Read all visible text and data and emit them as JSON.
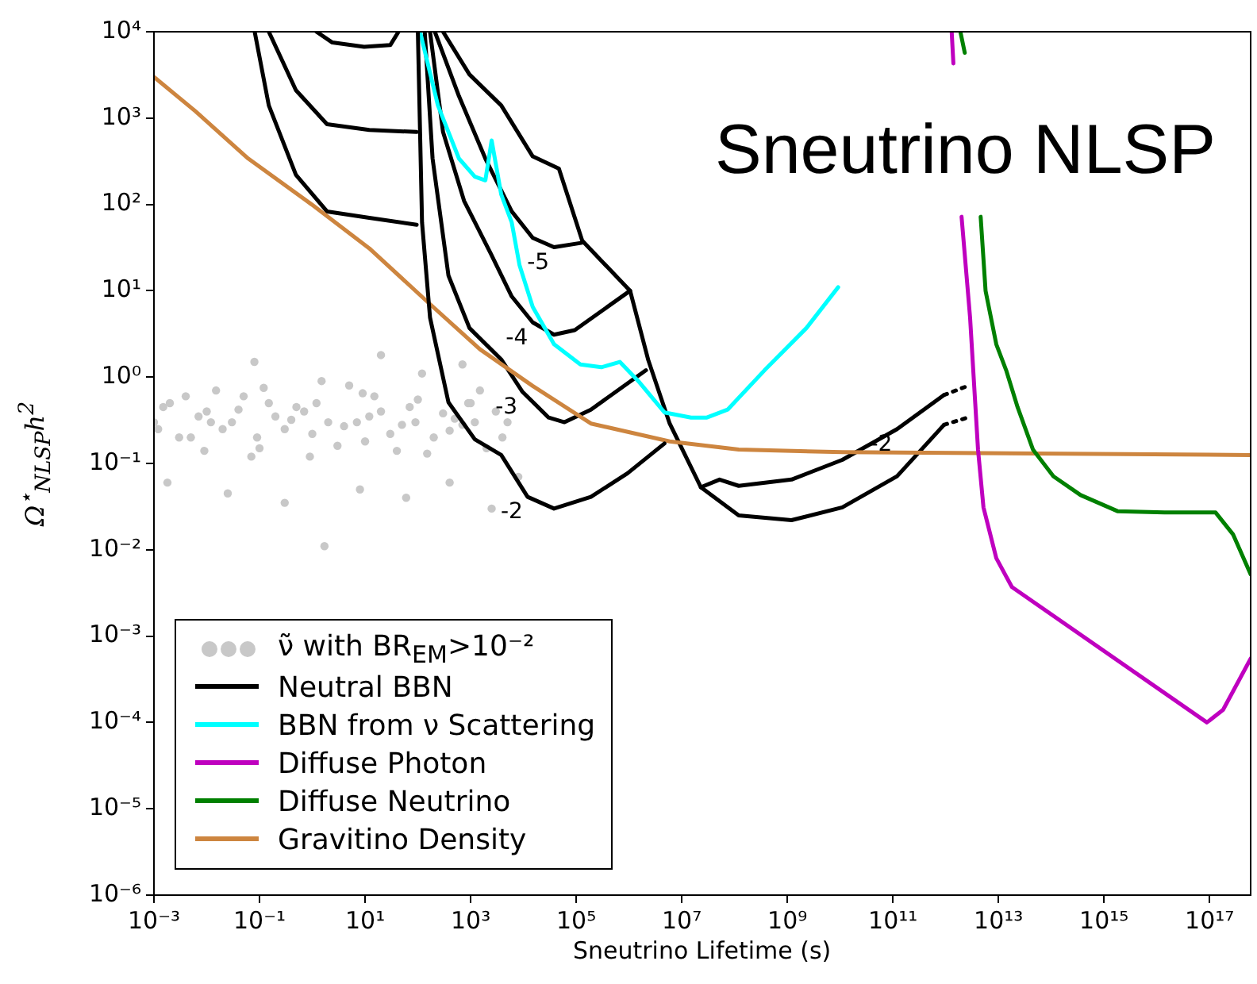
{
  "chart_data": {
    "type": "line",
    "title": "Sneutrino NLSP",
    "xlabel": "Sneutrino Lifetime (s)",
    "ylabel": "Ω$^{⋆}$$_{NLSP}$h$^{2}$",
    "log": "xy",
    "grid": false,
    "legend": "bottom left",
    "marker": "none",
    "xlim": [
      0.001,
      6e+17
    ],
    "ylim": [
      1e-06,
      10000
    ],
    "xticks": [
      {
        "value": 0.001,
        "label": "10⁻³"
      },
      {
        "value": 0.1,
        "label": "10⁻¹"
      },
      {
        "value": 10,
        "label": "10¹"
      },
      {
        "value": 1000,
        "label": "10³"
      },
      {
        "value": 100000.0,
        "label": "10⁵"
      },
      {
        "value": 10000000.0,
        "label": "10⁷"
      },
      {
        "value": 1000000000.0,
        "label": "10⁹"
      },
      {
        "value": 100000000000.0,
        "label": "10¹¹"
      },
      {
        "value": 10000000000000.0,
        "label": "10¹³"
      },
      {
        "value": 1000000000000000.0,
        "label": "10¹⁵"
      },
      {
        "value": 1e+17,
        "label": "10¹⁷"
      }
    ],
    "yticks": [
      {
        "value": 1e-06,
        "label": "10⁻⁶"
      },
      {
        "value": 1e-05,
        "label": "10⁻⁵"
      },
      {
        "value": 0.0001,
        "label": "10⁻⁴"
      },
      {
        "value": 0.001,
        "label": "10⁻³"
      },
      {
        "value": 0.01,
        "label": "10⁻²"
      },
      {
        "value": 0.1,
        "label": "10⁻¹"
      },
      {
        "value": 1,
        "label": "10⁰"
      },
      {
        "value": 10,
        "label": "10¹"
      },
      {
        "value": 100,
        "label": "10²"
      },
      {
        "value": 1000,
        "label": "10³"
      },
      {
        "value": 10000,
        "label": "10⁴"
      }
    ],
    "annotations": [
      {
        "text": "-5",
        "x": 38000,
        "y": 32
      },
      {
        "text": "-4",
        "x": 15000,
        "y": 4.3
      },
      {
        "text": "-3",
        "x": 9500,
        "y": 0.68
      },
      {
        "text": "-2",
        "x": 12000,
        "y": 0.041
      },
      {
        "text": "-2",
        "x": 120000000000,
        "y": 0.25
      }
    ],
    "series": [
      {
        "name": "ν̃ with BR$_{EM}$>10⁻²",
        "type": "scatter",
        "marker": "circle",
        "color": "#c8c8c8",
        "x": [
          0.001,
          0.002,
          0.005,
          0.01,
          0.02,
          0.05,
          0.1,
          0.2,
          0.5,
          1,
          2,
          5,
          10,
          20,
          50,
          100,
          200,
          500,
          1000,
          2000,
          5000,
          0.0015,
          0.003,
          0.007,
          0.015,
          0.03,
          0.07,
          0.15,
          0.3,
          0.7,
          1.5,
          3,
          7,
          15,
          30,
          70,
          150,
          300,
          700,
          1500,
          3000,
          0.0012,
          0.004,
          0.009,
          0.012,
          0.04,
          0.09,
          0.12,
          0.4,
          0.9,
          1.2,
          4,
          9,
          12,
          40,
          90,
          120,
          400,
          900,
          1200,
          4000,
          0.0018,
          0.025,
          0.3,
          1.7,
          8,
          60,
          400,
          2500,
          0.08,
          20,
          700,
          8000
        ],
        "values": [
          0.3,
          0.5,
          0.2,
          0.4,
          0.25,
          0.6,
          0.15,
          0.35,
          0.45,
          0.22,
          0.3,
          0.8,
          0.18,
          0.4,
          0.28,
          0.55,
          0.2,
          0.33,
          0.5,
          0.15,
          0.3,
          0.45,
          0.2,
          0.35,
          0.7,
          0.3,
          0.12,
          0.5,
          0.25,
          0.4,
          0.9,
          0.16,
          0.3,
          0.6,
          0.22,
          0.45,
          0.13,
          0.38,
          0.28,
          0.7,
          0.4,
          0.25,
          0.6,
          0.14,
          0.3,
          0.42,
          0.2,
          0.75,
          0.32,
          0.12,
          0.5,
          0.27,
          0.65,
          0.35,
          0.14,
          0.3,
          1.1,
          0.24,
          0.5,
          0.3,
          0.2,
          0.06,
          0.045,
          0.035,
          0.011,
          0.05,
          0.04,
          0.06,
          0.03,
          1.5,
          1.8,
          1.4,
          0.07
        ]
      },
      {
        "name": "Neutral BBN",
        "color": "#000000",
        "x": [
          100,
          120,
          170,
          380,
          1200,
          3800,
          12000,
          38000,
          190000,
          940000,
          4700000
        ],
        "values": [
          10000,
          62,
          4.9,
          0.51,
          0.19,
          0.125,
          0.041,
          0.03,
          0.041,
          0.077,
          0.17
        ]
      },
      {
        "name": "BBN from ν Scattering",
        "color": "#00ffff",
        "x": [
          110,
          240,
          600,
          1200,
          1900,
          2500,
          3800,
          6000,
          8400,
          15000,
          38000,
          120000,
          300000,
          670000,
          1500000,
          4700000,
          15000000,
          30000000,
          74000000,
          370000000,
          2300000000,
          9200000000
        ],
        "values": [
          10000,
          1400,
          340,
          210,
          190,
          550,
          130,
          62,
          20,
          6.5,
          2.4,
          1.4,
          1.3,
          1.5,
          0.9,
          0.39,
          0.34,
          0.34,
          0.42,
          1.2,
          3.7,
          11
        ]
      },
      {
        "name": "Diffuse Photon",
        "color": "#bf00bf",
        "x": [
          1300000000000.0,
          1400000000000.0,
          1700000000000.0,
          2000000000000.0,
          2900000000000.0,
          4100000000000.0,
          5200000000000.0,
          9100000000000.0,
          18000000000000.0,
          8.9e+16,
          1.8e+17,
          6e+17
        ],
        "values": [
          10000,
          4300,
          null,
          72,
          4.9,
          0.145,
          0.031,
          0.008,
          0.0037,
          0.0001,
          0.00014,
          0.00055
        ]
      },
      {
        "name": "Diffuse Neutrino",
        "color": "#008000",
        "x": [
          1900000000000.0,
          2300000000000.0,
          3000000000000.0,
          4600000000000.0,
          5700000000000.0,
          9100000000000.0,
          14000000000000.0,
          23000000000000.0,
          45000000000000.0,
          110000000000000.0,
          360000000000000.0,
          1800000000000000.0,
          1.4e+16,
          1.3e+17,
          2.8e+17,
          6e+17
        ],
        "values": [
          10000,
          5700,
          null,
          72,
          10,
          2.4,
          1.2,
          0.45,
          0.145,
          0.071,
          0.043,
          0.028,
          0.027,
          0.027,
          0.015,
          0.0052
        ]
      },
      {
        "name": "Gravitino Density",
        "color": "#cd853f",
        "x": [
          0.001,
          0.0061,
          0.061,
          0.97,
          12,
          150,
          1500,
          15000,
          190000,
          5900000,
          120000000,
          11000000000,
          6e+17
        ],
        "values": [
          3000,
          1200,
          340,
          100,
          31,
          7.5,
          2.1,
          0.79,
          0.29,
          0.18,
          0.145,
          0.135,
          0.125
        ]
      },
      {
        "color": "#000000",
        "x": [
          0.081,
          0.15,
          0.49,
          1.9,
          12,
          95
        ],
        "values": [
          10000,
          1400,
          220,
          83,
          70,
          58
        ]
      },
      {
        "color": "#000000",
        "x": [
          0.15,
          0.49,
          1.9,
          12,
          95
        ],
        "values": [
          10000,
          2100,
          850,
          730,
          690
        ]
      },
      {
        "color": "#000000",
        "x": [
          1.2,
          2.4,
          9.6,
          30,
          43
        ],
        "values": [
          10000,
          7500,
          6700,
          7000,
          10000
        ]
      },
      {
        "color": "#000000",
        "x": [
          135,
          190,
          380,
          950,
          3800,
          9500,
          30000,
          60000,
          190000,
          2100000
        ],
        "values": [
          10000,
          340,
          15,
          3.7,
          1.6,
          0.68,
          0.34,
          0.3,
          0.42,
          1.2
        ]
      },
      {
        "color": "#000000",
        "x": [
          170,
          300,
          750,
          2400,
          6000,
          15000,
          38000,
          94000,
          1050000
        ],
        "values": [
          10000,
          690,
          110,
          27,
          8.6,
          4.3,
          3.1,
          3.5,
          10
        ]
      },
      {
        "color": "#000000",
        "x": [
          210,
          600,
          1900,
          6000,
          15000,
          38000,
          130000
        ],
        "values": [
          10000,
          1800,
          340,
          83,
          41,
          32,
          36
        ]
      },
      {
        "color": "#000000",
        "x": [
          300,
          950,
          3800,
          15000,
          47000,
          130000,
          1050000,
          2300000,
          5900000,
          23000000,
          120000000,
          1200000000,
          11000000000,
          120000000000,
          930000000000
        ],
        "values": [
          10000,
          3200,
          1400,
          360,
          260,
          38,
          10,
          1.6,
          0.29,
          0.053,
          0.025,
          0.022,
          0.031,
          0.071,
          0.28
        ]
      },
      {
        "color": "#000000",
        "x": [
          23000000,
          52000000,
          120000000,
          1200000000,
          11000000000,
          120000000000,
          930000000000
        ],
        "values": [
          0.053,
          0.065,
          0.055,
          0.065,
          0.11,
          0.25,
          0.62
        ]
      },
      {
        "color": "#000000",
        "line_style": "dotted",
        "x": [
          930000000000,
          2600000000000
        ],
        "values": [
          0.62,
          0.79
        ]
      },
      {
        "color": "#000000",
        "line_style": "dotted",
        "x": [
          930000000000,
          2600000000000
        ],
        "values": [
          0.28,
          0.34
        ]
      }
    ]
  }
}
